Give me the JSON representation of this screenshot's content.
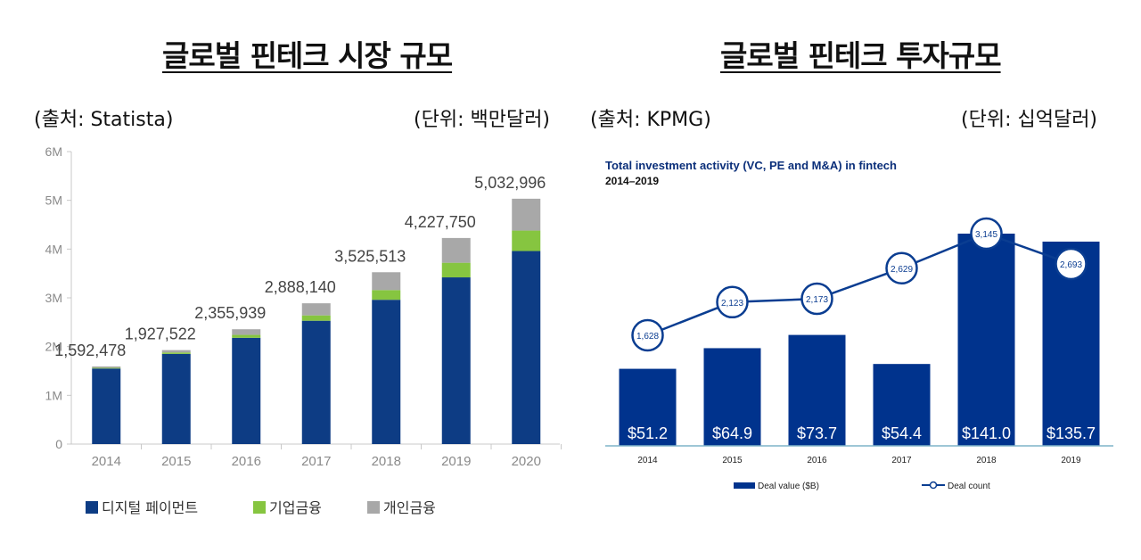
{
  "left": {
    "heading": "글로벌 핀테크 시장 규모",
    "source": "(출처:  Statista)",
    "unit": "(단위:  백만달러)"
  },
  "right": {
    "heading": "글로벌 핀테크 투자규모",
    "source": "(출처:  KPMG)",
    "unit": "(단위:  십억달러)"
  },
  "colors": {
    "digital_payment": "#0d3c84",
    "corporate_finance": "#86c540",
    "personal_finance": "#a8a8a8",
    "deal_value": "#00338d",
    "deal_count": "#0a3d91"
  },
  "chart_data": [
    {
      "type": "bar",
      "stacked": true,
      "categories": [
        "2014",
        "2015",
        "2016",
        "2017",
        "2018",
        "2019",
        "2020"
      ],
      "y_ticks": [
        "0",
        "1M",
        "2M",
        "3M",
        "4M",
        "5M",
        "6M"
      ],
      "ylim": [
        0,
        6000000
      ],
      "totals": [
        "1,592,478",
        "1,927,522",
        "2,355,939",
        "2,888,140",
        "3,525,513",
        "4,227,750",
        "5,032,996"
      ],
      "total_values": [
        1592478,
        1927522,
        2355939,
        2888140,
        3525513,
        4227750,
        5032996
      ],
      "series": [
        {
          "name": "디지털 페이먼트",
          "values": [
            1550000,
            1850000,
            2180000,
            2530000,
            2960000,
            3420000,
            3960000
          ]
        },
        {
          "name": "기업금융",
          "values": [
            15000,
            30000,
            60000,
            110000,
            200000,
            300000,
            420000
          ]
        },
        {
          "name": "개인금융",
          "values": [
            27478,
            47522,
            115939,
            248140,
            365513,
            507750,
            652996
          ]
        }
      ],
      "grid": false,
      "legend": "bottom"
    },
    {
      "type": "bar",
      "title": "Total investment activity (VC, PE and M&A) in fintech",
      "subtitle": "2014–2019",
      "categories": [
        "2014",
        "2015",
        "2016",
        "2017",
        "2018",
        "2019"
      ],
      "series": [
        {
          "name": "Deal value ($B)",
          "type": "bar",
          "values": [
            51.2,
            64.9,
            73.7,
            54.4,
            141.0,
            135.7
          ],
          "labels": [
            "$51.2",
            "$64.9",
            "$73.7",
            "$54.4",
            "$141.0",
            "$135.7"
          ]
        },
        {
          "name": "Deal count",
          "type": "line",
          "values": [
            1628,
            2123,
            2173,
            2629,
            3145,
            2693
          ],
          "labels": [
            "1,628",
            "2,123",
            "2,173",
            "2,629",
            "3,145",
            "2,693"
          ]
        }
      ],
      "grid": false,
      "legend": "bottom"
    }
  ]
}
